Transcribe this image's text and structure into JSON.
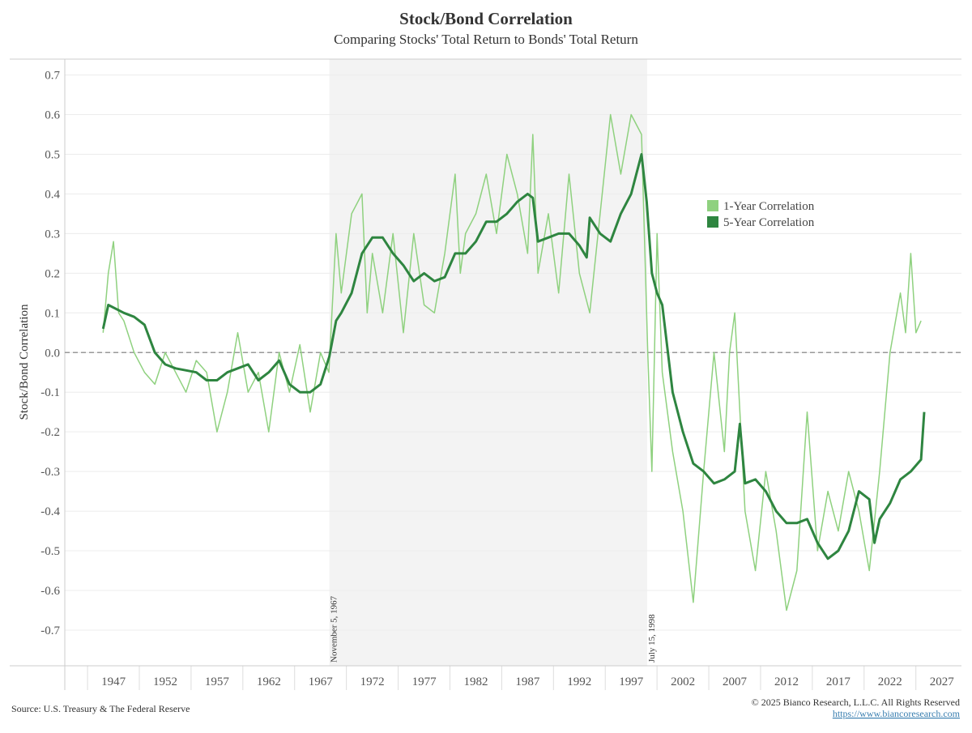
{
  "chart_data": {
    "type": "line",
    "title": "Stock/Bond Correlation",
    "subtitle": "Comparing Stocks' Total Return to Bonds' Total Return",
    "ylabel": "Stock/Bond Correlation",
    "xlim": [
      1942.3,
      2028.9
    ],
    "xticks": [
      1947,
      1952,
      1957,
      1962,
      1967,
      1972,
      1977,
      1982,
      1987,
      1992,
      1997,
      2002,
      2007,
      2012,
      2017,
      2022,
      2027
    ],
    "ylim": [
      -0.79,
      0.74
    ],
    "yticks": [
      0.7,
      0.6,
      0.5,
      0.4,
      0.3,
      0.2,
      0.1,
      {
        "value": 0,
        "label": "0.0"
      },
      -0.1,
      -0.2,
      -0.3,
      -0.4,
      -0.5,
      -0.6,
      -0.7
    ],
    "hline": 0,
    "annotations": [
      {
        "x": 1967.85,
        "text": "November 5, 1967"
      },
      {
        "x": 1998.54,
        "text": "July 15, 1998"
      }
    ],
    "legend": "right",
    "series": [
      {
        "name": "1-Year Correlation",
        "color": "#8fd17f",
        "x": [
          1946,
          1946.5,
          1947,
          1947.5,
          1948,
          1949,
          1950,
          1951,
          1952,
          1953,
          1954,
          1955,
          1956,
          1957,
          1958,
          1959,
          1960,
          1961,
          1962,
          1963,
          1964,
          1965,
          1966,
          1967,
          1967.8,
          1968.5,
          1969,
          1970,
          1971,
          1971.5,
          1972,
          1973,
          1974,
          1975,
          1976,
          1977,
          1978,
          1979,
          1980,
          1980.5,
          1981,
          1982,
          1983,
          1984,
          1985,
          1986,
          1987,
          1987.5,
          1988,
          1989,
          1990,
          1991,
          1992,
          1993,
          1994,
          1995,
          1996,
          1997,
          1998,
          1998.6,
          1999,
          1999.5,
          2000,
          2001,
          2002,
          2003,
          2004,
          2005,
          2006,
          2006.5,
          2007,
          2008,
          2009,
          2010,
          2011,
          2012,
          2013,
          2014,
          2015,
          2016,
          2017,
          2018,
          2019,
          2020,
          2021,
          2022,
          2023,
          2023.5,
          2024,
          2024.5,
          2025
        ],
        "values": [
          0.05,
          0.2,
          0.28,
          0.1,
          0.08,
          0.0,
          -0.05,
          -0.08,
          0.0,
          -0.05,
          -0.1,
          -0.02,
          -0.05,
          -0.2,
          -0.1,
          0.05,
          -0.1,
          -0.05,
          -0.2,
          0.0,
          -0.1,
          0.02,
          -0.15,
          0.0,
          -0.05,
          0.3,
          0.15,
          0.35,
          0.4,
          0.1,
          0.25,
          0.1,
          0.3,
          0.05,
          0.3,
          0.12,
          0.1,
          0.25,
          0.45,
          0.2,
          0.3,
          0.35,
          0.45,
          0.3,
          0.5,
          0.4,
          0.25,
          0.55,
          0.2,
          0.35,
          0.15,
          0.45,
          0.2,
          0.1,
          0.35,
          0.6,
          0.45,
          0.6,
          0.55,
          0.0,
          -0.3,
          0.3,
          -0.05,
          -0.25,
          -0.4,
          -0.63,
          -0.3,
          0.0,
          -0.25,
          0.0,
          0.1,
          -0.4,
          -0.55,
          -0.3,
          -0.45,
          -0.65,
          -0.55,
          -0.15,
          -0.5,
          -0.35,
          -0.45,
          -0.3,
          -0.4,
          -0.55,
          -0.3,
          0.0,
          0.15,
          0.05,
          0.25,
          0.05,
          0.08
        ]
      },
      {
        "name": "5-Year Correlation",
        "color": "#2e8540",
        "x": [
          1946,
          1946.5,
          1948,
          1949,
          1950,
          1951,
          1952,
          1953,
          1955,
          1956,
          1957,
          1958,
          1959,
          1960,
          1961,
          1962,
          1963,
          1964,
          1965,
          1966,
          1967,
          1967.85,
          1968.5,
          1969,
          1970,
          1971,
          1972,
          1973,
          1974,
          1975,
          1976,
          1977,
          1978,
          1979,
          1980,
          1981,
          1982,
          1983,
          1984,
          1985,
          1986,
          1987,
          1987.5,
          1988,
          1989,
          1990,
          1991,
          1992,
          1992.7,
          1993,
          1994,
          1995,
          1996,
          1997,
          1998,
          1998.5,
          1999,
          1999.5,
          2000,
          2001,
          2002,
          2003,
          2004,
          2005,
          2006,
          2007,
          2007.5,
          2008,
          2009,
          2010,
          2011,
          2012,
          2013,
          2014,
          2015,
          2016,
          2017,
          2018,
          2019,
          2020,
          2020.5,
          2021,
          2022,
          2023,
          2024,
          2025,
          2025.3
        ],
        "values": [
          0.06,
          0.12,
          0.1,
          0.09,
          0.07,
          0.0,
          -0.03,
          -0.04,
          -0.05,
          -0.07,
          -0.07,
          -0.05,
          -0.04,
          -0.03,
          -0.07,
          -0.05,
          -0.02,
          -0.08,
          -0.1,
          -0.1,
          -0.08,
          -0.01,
          0.08,
          0.1,
          0.15,
          0.25,
          0.29,
          0.29,
          0.25,
          0.22,
          0.18,
          0.2,
          0.18,
          0.19,
          0.25,
          0.25,
          0.28,
          0.33,
          0.33,
          0.35,
          0.38,
          0.4,
          0.39,
          0.28,
          0.29,
          0.3,
          0.3,
          0.27,
          0.24,
          0.34,
          0.3,
          0.28,
          0.35,
          0.4,
          0.5,
          0.38,
          0.2,
          0.15,
          0.12,
          -0.1,
          -0.2,
          -0.28,
          -0.3,
          -0.33,
          -0.32,
          -0.3,
          -0.18,
          -0.33,
          -0.32,
          -0.35,
          -0.4,
          -0.43,
          -0.43,
          -0.42,
          -0.48,
          -0.52,
          -0.5,
          -0.45,
          -0.35,
          -0.37,
          -0.48,
          -0.42,
          -0.38,
          -0.32,
          -0.3,
          -0.27,
          -0.15
        ]
      }
    ]
  },
  "footer": {
    "source": "Source: U.S. Treasury & The Federal Reserve",
    "copyright": "© 2025 Bianco Research, L.L.C. All Rights Reserved",
    "url": "https://www.biancoresearch.com"
  }
}
